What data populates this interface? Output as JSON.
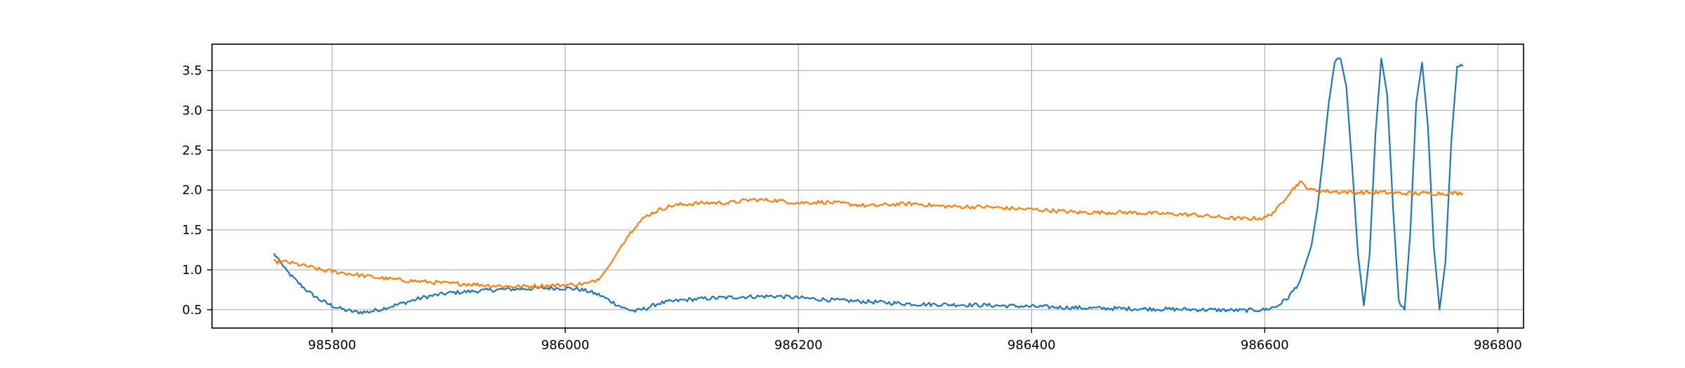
{
  "chart_data": {
    "type": "line",
    "title": "",
    "xlabel": "",
    "ylabel": "",
    "xlim": [
      985697,
      986822
    ],
    "ylim": [
      0.27,
      3.83
    ],
    "x_ticks": [
      985800,
      986000,
      986200,
      986400,
      986600,
      986800
    ],
    "x_tick_labels": [
      "985800",
      "986000",
      "986200",
      "986400",
      "986600",
      "986800"
    ],
    "y_ticks": [
      0.5,
      1.0,
      1.5,
      2.0,
      2.5,
      3.0,
      3.5
    ],
    "y_tick_labels": [
      "0.5",
      "1.0",
      "1.5",
      "2.0",
      "2.5",
      "3.0",
      "3.5"
    ],
    "grid": true,
    "legend": "none",
    "series": [
      {
        "color": "#1f77b4",
        "x": [
          985750,
          985755,
          985760,
          985770,
          985780,
          985790,
          985800,
          985810,
          985820,
          985830,
          985840,
          985860,
          985880,
          985900,
          985920,
          985940,
          985960,
          985980,
          986000,
          986010,
          986020,
          986030,
          986040,
          986050,
          986060,
          986070,
          986080,
          986100,
          986120,
          986150,
          986180,
          986200,
          986230,
          986260,
          986300,
          986350,
          986400,
          986450,
          986500,
          986550,
          986580,
          986600,
          986610,
          986620,
          986630,
          986640,
          986645,
          986650,
          986655,
          986660,
          986665,
          986670,
          986675,
          986680,
          986685,
          986690,
          986695,
          986700,
          986705,
          986710,
          986715,
          986720,
          986725,
          986730,
          986735,
          986740,
          986745,
          986750,
          986755,
          986760,
          986765,
          986770
        ],
        "y": [
          1.2,
          1.12,
          1.0,
          0.85,
          0.72,
          0.62,
          0.55,
          0.5,
          0.47,
          0.47,
          0.5,
          0.58,
          0.66,
          0.71,
          0.73,
          0.75,
          0.76,
          0.77,
          0.77,
          0.76,
          0.73,
          0.68,
          0.6,
          0.52,
          0.48,
          0.52,
          0.58,
          0.62,
          0.64,
          0.66,
          0.67,
          0.65,
          0.62,
          0.6,
          0.57,
          0.56,
          0.54,
          0.52,
          0.51,
          0.5,
          0.49,
          0.5,
          0.54,
          0.65,
          0.85,
          1.3,
          1.75,
          2.4,
          3.1,
          3.6,
          3.65,
          3.3,
          2.3,
          1.2,
          0.55,
          1.2,
          2.7,
          3.65,
          3.2,
          1.8,
          0.6,
          0.5,
          1.5,
          3.1,
          3.6,
          2.8,
          1.3,
          0.5,
          1.1,
          2.6,
          3.55,
          3.55
        ]
      },
      {
        "color": "#ff7f0e",
        "x": [
          985750,
          985760,
          985770,
          985780,
          985790,
          985800,
          985820,
          985840,
          985860,
          985880,
          985900,
          985920,
          985940,
          985960,
          985980,
          986000,
          986020,
          986030,
          986040,
          986050,
          986060,
          986070,
          986080,
          986090,
          986100,
          986120,
          986140,
          986160,
          986180,
          986200,
          986220,
          986240,
          986260,
          986280,
          986300,
          986320,
          986340,
          986360,
          986380,
          986400,
          986420,
          986440,
          986460,
          986480,
          986500,
          986520,
          986540,
          986560,
          986580,
          986600,
          986610,
          986620,
          986630,
          986640,
          986660,
          986680,
          986700,
          986720,
          986740,
          986770
        ],
        "y": [
          1.1,
          1.1,
          1.07,
          1.04,
          1.0,
          0.98,
          0.94,
          0.9,
          0.87,
          0.85,
          0.83,
          0.82,
          0.8,
          0.79,
          0.8,
          0.81,
          0.83,
          0.9,
          1.1,
          1.35,
          1.55,
          1.68,
          1.75,
          1.8,
          1.82,
          1.84,
          1.84,
          1.88,
          1.87,
          1.84,
          1.85,
          1.83,
          1.8,
          1.82,
          1.83,
          1.8,
          1.79,
          1.79,
          1.77,
          1.76,
          1.74,
          1.72,
          1.72,
          1.72,
          1.71,
          1.7,
          1.69,
          1.66,
          1.64,
          1.65,
          1.75,
          1.95,
          2.1,
          2.0,
          1.98,
          1.97,
          1.97,
          1.96,
          1.96,
          1.96
        ]
      }
    ]
  }
}
